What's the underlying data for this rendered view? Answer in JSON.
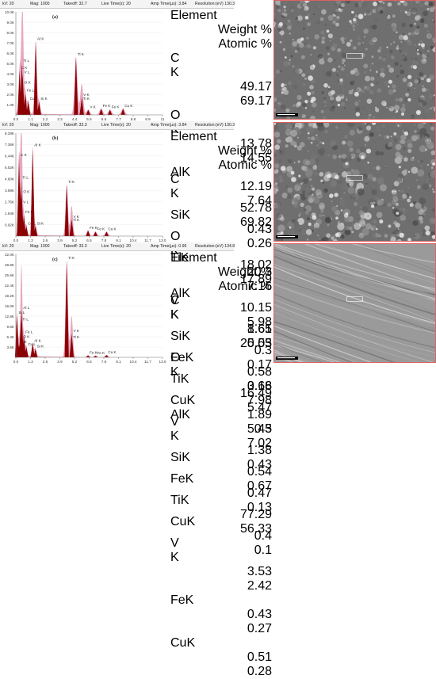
{
  "panels": [
    {
      "header": {
        "kv": "kV: 20",
        "mag": "Mag: 1000",
        "takeoff": "Takeoff: 32.7",
        "live": "Live Time(s): 20",
        "amp": "Amp Time(µs): 3.84",
        "res": "Resolution:(eV) 130.3"
      },
      "table": {
        "headers": [
          "Element",
          "Weight %",
          "Atomic %"
        ],
        "rows": [
          [
            "C K",
            "49.17",
            "69.17"
          ],
          [
            "O K",
            "13.78",
            "14.55"
          ],
          [
            "AlK",
            "12.19",
            "7.64"
          ],
          [
            "SiK",
            "0.43",
            "0.26"
          ],
          [
            "TiK",
            "20.3",
            "7.16"
          ],
          [
            "V K",
            "1.65",
            "0.55"
          ],
          [
            "FeK",
            "0.58",
            "0.18"
          ],
          [
            "CuK",
            "1.89",
            "0.5"
          ]
        ]
      },
      "sem_label": "",
      "sem_scale": ""
    },
    {
      "header": {
        "kv": "kV: 20",
        "mag": "Mag: 1000",
        "takeoff": "Takeoff: 33.3",
        "live": "Live Time(s): 20",
        "amp": "Amp Time(µs): 3.84",
        "res": "Resolution:(eV) 130.3"
      },
      "table": {
        "headers": [
          "Element",
          "Weight %",
          "Atomic %"
        ],
        "rows": [
          [
            "C K",
            "52.78",
            "69.82"
          ],
          [
            "O K",
            "18.02",
            "17.89"
          ],
          [
            "AlK",
            "10.15",
            "5.98"
          ],
          [
            "SiK",
            "0.3",
            "0.17"
          ],
          [
            "TiK",
            "16.49",
            "5.47"
          ],
          [
            "V K",
            "1.38",
            "0.43"
          ],
          [
            "FeK",
            "0.47",
            "0.13"
          ],
          [
            "CuK",
            "0.4",
            "0.1"
          ]
        ]
      },
      "sem_label": "",
      "sem_scale": ""
    },
    {
      "header": {
        "kv": "kV: 20",
        "mag": "Mag: 1000",
        "takeoff": "Takeoff: 33.3",
        "live": "Live Time(s): 20",
        "amp": "Amp Time(µs): 0.96",
        "res": "Resolution:(eV) 134.8"
      },
      "table": {
        "headers": [
          "Element",
          "Weight %",
          "Atomic %"
        ],
        "rows": [
          [
            "C K",
            "8.61",
            "25.03"
          ],
          [
            "O K",
            "3.66",
            "7.98"
          ],
          [
            "AlK",
            "5.43",
            "7.02"
          ],
          [
            "SiK",
            "0.54",
            "0.67"
          ],
          [
            "TiK",
            "77.29",
            "56.33"
          ],
          [
            "V K",
            "3.53",
            "2.42"
          ],
          [
            "FeK",
            "0.43",
            "0.27"
          ],
          [
            "CuK",
            "0.51",
            "0.28"
          ]
        ]
      },
      "sem_label": "",
      "sem_scale": ""
    }
  ],
  "chart_data": [
    {
      "type": "line",
      "title": "(a)",
      "xlabel": "",
      "ylabel": "",
      "xlim": [
        0,
        11.0
      ],
      "ylim": [
        0,
        10000
      ],
      "x_ticks": [
        "0.0",
        "1.1",
        "2.2",
        "3.3",
        "4.4",
        "5.5",
        "6.6",
        "7.7",
        "8.8",
        "9.9",
        "11"
      ],
      "y_ticks": [
        "1.0K",
        "2.0K",
        "3.0K",
        "4.0K",
        "5.0K",
        "6.0K",
        "7.0K",
        "8.0K",
        "9.0K",
        "10.0K"
      ],
      "peaks": [
        {
          "x": 0.28,
          "y": 4300,
          "label": "C K"
        },
        {
          "x": 0.52,
          "y": 2900,
          "label": "O K"
        },
        {
          "x": 0.45,
          "y": 5000,
          "label": "Ti L"
        },
        {
          "x": 0.51,
          "y": 3900,
          "label": "V L"
        },
        {
          "x": 0.71,
          "y": 2100,
          "label": "Fe L"
        },
        {
          "x": 0.93,
          "y": 1300,
          "label": "Cu L"
        },
        {
          "x": 1.49,
          "y": 7100,
          "label": "Al K"
        },
        {
          "x": 1.74,
          "y": 1300,
          "label": "Si K"
        },
        {
          "x": 4.51,
          "y": 5600,
          "label": "Ti K"
        },
        {
          "x": 4.93,
          "y": 1300,
          "label": "Ti K"
        },
        {
          "x": 4.95,
          "y": 1700,
          "label": "V K"
        },
        {
          "x": 5.43,
          "y": 500,
          "label": "V K"
        },
        {
          "x": 6.4,
          "y": 600,
          "label": "Fe K"
        },
        {
          "x": 7.06,
          "y": 500,
          "label": "Fe K"
        },
        {
          "x": 8.04,
          "y": 600,
          "label": "Cu K"
        }
      ]
    },
    {
      "type": "line",
      "title": "(b)",
      "xlabel": "",
      "ylabel": "",
      "xlim": [
        0,
        13.0
      ],
      "ylim": [
        0,
        9200
      ],
      "x_ticks": [
        "0.0",
        "1.3",
        "2.6",
        "3.9",
        "5.2",
        "6.5",
        "7.8",
        "9.1",
        "10.4",
        "11.7",
        "13.0"
      ],
      "y_ticks": [
        "0.92K",
        "1.84K",
        "2.76K",
        "3.68K",
        "4.60K",
        "5.52K",
        "6.44K",
        "7.36K",
        "8.28K"
      ],
      "peaks": [
        {
          "x": 0.28,
          "y": 7000,
          "label": "C K"
        },
        {
          "x": 0.52,
          "y": 3700,
          "label": "O K"
        },
        {
          "x": 0.45,
          "y": 5000,
          "label": "Ti L"
        },
        {
          "x": 0.51,
          "y": 2800,
          "label": "V L"
        },
        {
          "x": 0.71,
          "y": 1900,
          "label": "Fe L"
        },
        {
          "x": 0.93,
          "y": 900,
          "label": "Cu L"
        },
        {
          "x": 1.49,
          "y": 7900,
          "label": "Al K"
        },
        {
          "x": 1.74,
          "y": 900,
          "label": "Si K"
        },
        {
          "x": 4.51,
          "y": 4600,
          "label": "Ti K"
        },
        {
          "x": 4.93,
          "y": 1200,
          "label": "Ti K"
        },
        {
          "x": 4.95,
          "y": 1500,
          "label": "V K"
        },
        {
          "x": 6.4,
          "y": 500,
          "label": "Fe K"
        },
        {
          "x": 7.06,
          "y": 400,
          "label": "Fe K"
        },
        {
          "x": 8.04,
          "y": 400,
          "label": "Cu K"
        }
      ]
    },
    {
      "type": "line",
      "title": "(c)",
      "xlabel": "",
      "ylabel": "",
      "xlim": [
        0,
        13.0
      ],
      "ylim": [
        0,
        32000
      ],
      "x_ticks": [
        "0.0",
        "1.3",
        "2.6",
        "3.9",
        "5.2",
        "6.5",
        "7.8",
        "9.1",
        "10.4",
        "11.7",
        "13.0"
      ],
      "y_ticks": [
        "3.6K",
        "6.4K",
        "9.6K",
        "12.8K",
        "16.0K",
        "19.2K",
        "22.4K",
        "25.6K",
        "28.8K",
        "32.0K"
      ],
      "peaks": [
        {
          "x": 0.28,
          "y": 4000,
          "label": "C K"
        },
        {
          "x": 0.52,
          "y": 5500,
          "label": "O K"
        },
        {
          "x": 0.45,
          "y": 11000,
          "label": "Ti L"
        },
        {
          "x": 0.51,
          "y": 14500,
          "label": "Al L"
        },
        {
          "x": 0.1,
          "y": 13000,
          "label": "Si L"
        },
        {
          "x": 0.71,
          "y": 7000,
          "label": "Fe L"
        },
        {
          "x": 0.93,
          "y": 3200,
          "label": "Cu L"
        },
        {
          "x": 1.49,
          "y": 4300,
          "label": "Al K"
        },
        {
          "x": 1.74,
          "y": 2600,
          "label": "Si K"
        },
        {
          "x": 4.51,
          "y": 30000,
          "label": "Ti K"
        },
        {
          "x": 4.93,
          "y": 5400,
          "label": "Ti K"
        },
        {
          "x": 4.95,
          "y": 7400,
          "label": "V K"
        },
        {
          "x": 6.4,
          "y": 600,
          "label": "Fe K"
        },
        {
          "x": 7.06,
          "y": 500,
          "label": "Fe K"
        },
        {
          "x": 8.04,
          "y": 700,
          "label": "Cu K"
        }
      ]
    }
  ],
  "colors": {
    "fill": "#e8a7c1",
    "peak": "#8b0000",
    "axis": "#777777",
    "table_stripe": "#c8dbf0",
    "sem_frame": "#e06060"
  }
}
